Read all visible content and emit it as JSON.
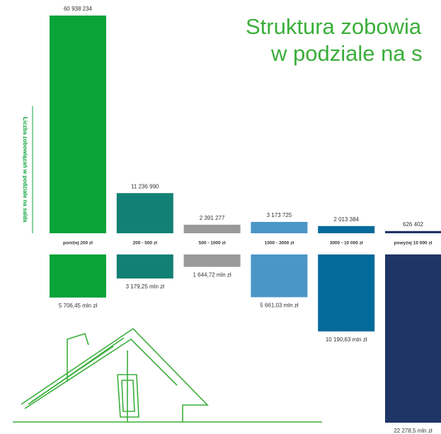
{
  "chart_data": {
    "type": "bar",
    "title": [
      "Struktura zobowia",
      "w podziale na s"
    ],
    "y_label": "Liczba zobowiązań w podziale na salda",
    "categories": [
      "poniżej 200 zł",
      "200 - 500 zł",
      "500 - 1000 zł",
      "1000 - 3000 zł",
      "3000 - 10 000 zł",
      "powyżej 10 000 zł"
    ],
    "colors": [
      "#0aa33a",
      "#128074",
      "#999999",
      "#4a96c7",
      "#036a9a",
      "#1f3566"
    ],
    "series": [
      {
        "name": null,
        "values": [
          60938234,
          11236990,
          2391277,
          3173725,
          2013384,
          626402
        ],
        "value_labels": [
          "60 938 234",
          "11 236 990",
          "2 391 277",
          "3 173 725",
          "2 013 384",
          "626 402"
        ]
      },
      {
        "name": null,
        "values": [
          5706.45,
          3179.25,
          1644.72,
          5661.03,
          10190.63,
          22278.5
        ],
        "value_labels": [
          "5 706,45 mln zł",
          "3 179,25 mln zł",
          "1 644,72 mln zł",
          "5 661,03 mln zł",
          "10 190,63 mln zł",
          "22 278,5 mln zł"
        ]
      }
    ]
  }
}
